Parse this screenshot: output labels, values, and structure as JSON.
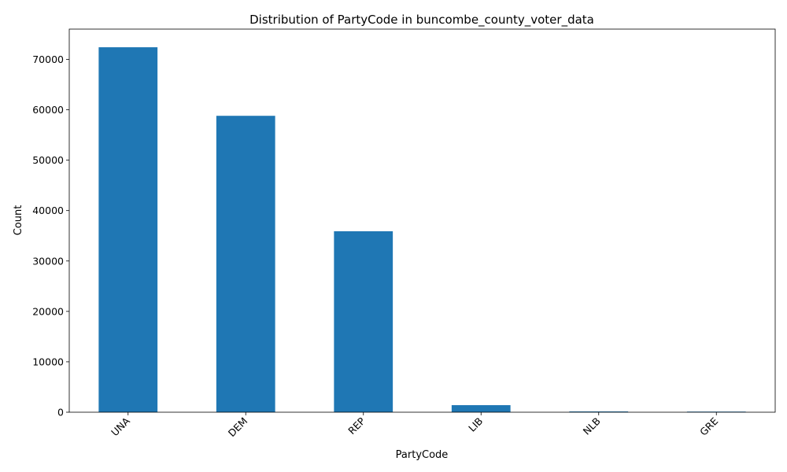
{
  "chart_data": {
    "type": "bar",
    "title": "Distribution of PartyCode in buncombe_county_voter_data",
    "xlabel": "PartyCode",
    "ylabel": "Count",
    "categories": [
      "UNA",
      "DEM",
      "REP",
      "LIB",
      "NLB",
      "GRE"
    ],
    "values": [
      72400,
      58800,
      35900,
      1400,
      150,
      120
    ],
    "ylim": [
      0,
      76000
    ],
    "yticks": [
      0,
      10000,
      20000,
      30000,
      40000,
      50000,
      60000,
      70000
    ],
    "bar_color": "#1f77b4",
    "grid": false,
    "legend": "none"
  }
}
